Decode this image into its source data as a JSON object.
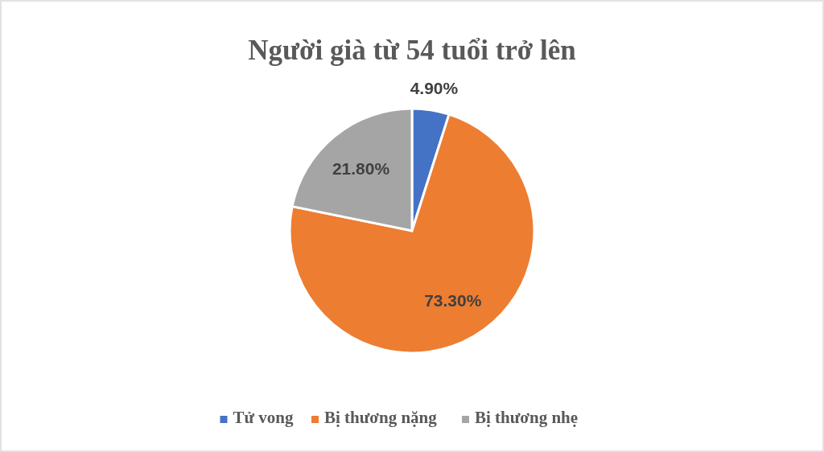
{
  "chart_data": {
    "type": "pie",
    "title": "Người già từ 54 tuổi trở lên",
    "categories": [
      "Tử vong",
      "Bị thương nặng",
      "Bị thương nhẹ"
    ],
    "values": [
      4.9,
      73.3,
      21.8
    ],
    "colors": [
      "#4472c4",
      "#ed7d31",
      "#a5a5a5"
    ],
    "value_labels": [
      "4.90%",
      "73.30%",
      "21.80%"
    ],
    "legend": "bottom"
  }
}
